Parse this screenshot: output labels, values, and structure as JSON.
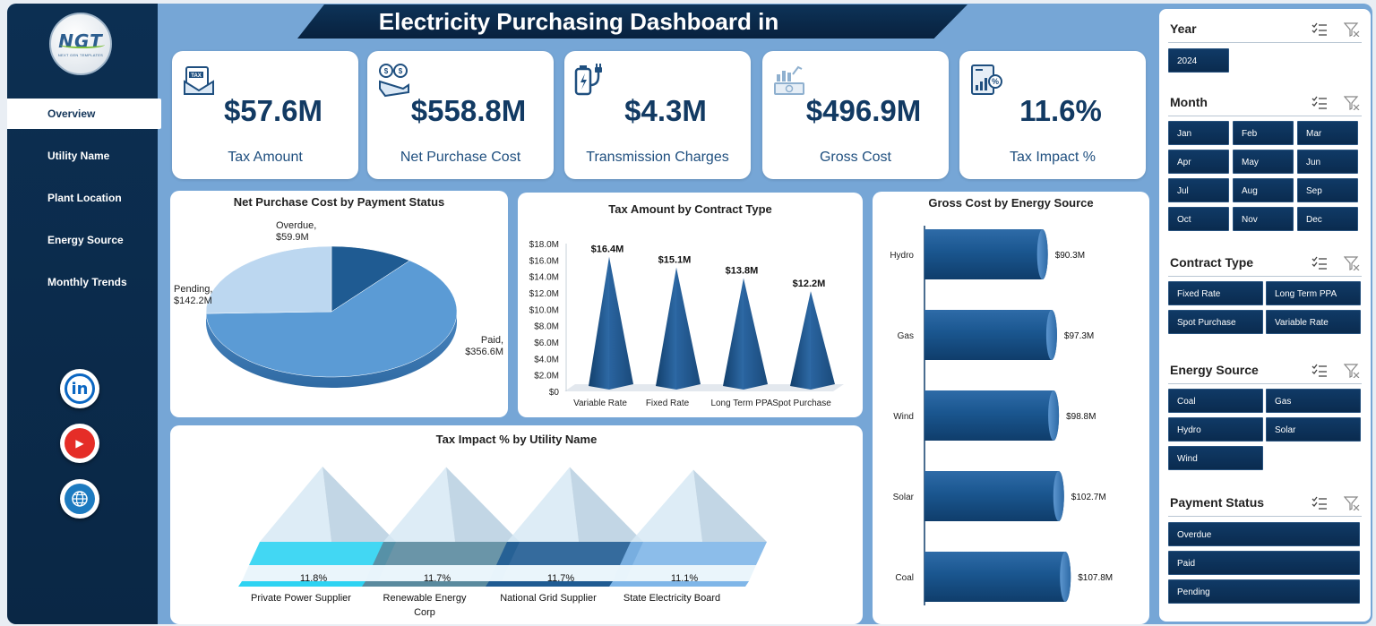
{
  "title": "Electricity Purchasing Dashboard in",
  "logo": {
    "text": "NGT",
    "subtext": "NEXT GEN TEMPLATES"
  },
  "nav": {
    "items": [
      {
        "label": "Overview",
        "active": true
      },
      {
        "label": "Utility Name",
        "active": false
      },
      {
        "label": "Plant Location",
        "active": false
      },
      {
        "label": "Energy Source",
        "active": false
      },
      {
        "label": "Monthly Trends",
        "active": false
      }
    ]
  },
  "social": [
    {
      "icon": "linkedin-icon",
      "text": "in",
      "color": "#0a66c2"
    },
    {
      "icon": "youtube-icon",
      "text": "▶",
      "color": "#e52d27"
    },
    {
      "icon": "globe-icon",
      "text": "",
      "color": "#1d7bc0"
    }
  ],
  "kpis": [
    {
      "value": "$57.6M",
      "label": "Tax Amount",
      "icon": "tax-document-icon"
    },
    {
      "value": "$558.8M",
      "label": "Net Purchase Cost",
      "icon": "money-coins-icon"
    },
    {
      "value": "$4.3M",
      "label": "Transmission Charges",
      "icon": "battery-plug-icon"
    },
    {
      "value": "$496.9M",
      "label": "Gross Cost",
      "icon": "cash-chart-icon"
    },
    {
      "value": "11.6%",
      "label": "Tax Impact %",
      "icon": "report-percent-icon"
    }
  ],
  "chart_data": [
    {
      "type": "pie",
      "title": "Net Purchase Cost by Payment Status",
      "categories": [
        "Paid",
        "Pending",
        "Overdue"
      ],
      "values": [
        356.6,
        142.2,
        59.9
      ],
      "labels": [
        "Paid,",
        "Pending,",
        "Overdue,"
      ],
      "value_labels": [
        "$356.6M",
        "$142.2M",
        "$59.9M"
      ],
      "colors": [
        "#5b9bd5",
        "#bcd7f0",
        "#1f5b92"
      ]
    },
    {
      "type": "bar",
      "title": "Tax Amount by Contract Type",
      "categories": [
        "Variable Rate",
        "Fixed Rate",
        "Long Term PPA",
        "Spot Purchase"
      ],
      "values": [
        16.4,
        15.1,
        13.8,
        12.2
      ],
      "value_labels": [
        "$16.4M",
        "$15.1M",
        "$13.8M",
        "$12.2M"
      ],
      "ylim": [
        0,
        18
      ],
      "yticks": [
        "$0",
        "$2.0M",
        "$4.0M",
        "$6.0M",
        "$8.0M",
        "$10.0M",
        "$12.0M",
        "$14.0M",
        "$16.0M",
        "$18.0M"
      ],
      "shape": "pyramid"
    },
    {
      "type": "bar",
      "title": "Gross Cost by Energy Source",
      "orientation": "horizontal",
      "categories": [
        "Hydro",
        "Gas",
        "Wind",
        "Solar",
        "Coal"
      ],
      "values": [
        90.3,
        97.3,
        98.8,
        102.7,
        107.8
      ],
      "value_labels": [
        "$90.3M",
        "$97.3M",
        "$98.8M",
        "$102.7M",
        "$107.8M"
      ],
      "shape": "cylinder"
    },
    {
      "type": "bar",
      "title": "Tax Impact % by Utility Name",
      "categories": [
        "Private Power Supplier",
        "Renewable Energy Corp",
        "National Grid Supplier",
        "State Electricity Board"
      ],
      "category_lines": [
        [
          "Private Power Supplier"
        ],
        [
          "Renewable Energy",
          "Corp"
        ],
        [
          "National Grid Supplier"
        ],
        [
          "State Electricity Board"
        ]
      ],
      "values": [
        11.8,
        11.7,
        11.7,
        11.1
      ],
      "value_labels": [
        "11.8%",
        "11.7%",
        "11.7%",
        "11.1%"
      ],
      "shape": "pyramid",
      "colors": [
        "#2ed3f2",
        "#5a8a9e",
        "#1f5b92",
        "#7fb6e8"
      ]
    }
  ],
  "slicers": [
    {
      "title": "Year",
      "buttons": [
        "2024"
      ]
    },
    {
      "title": "Month",
      "buttons": [
        "Jan",
        "Feb",
        "Mar",
        "Apr",
        "May",
        "Jun",
        "Jul",
        "Aug",
        "Sep",
        "Oct",
        "Nov",
        "Dec"
      ]
    },
    {
      "title": "Contract Type",
      "buttons": [
        "Fixed Rate",
        "Long Term PPA",
        "Spot Purchase",
        "Variable Rate"
      ]
    },
    {
      "title": "Energy Source",
      "buttons": [
        "Coal",
        "Gas",
        "Hydro",
        "Solar",
        "Wind"
      ]
    },
    {
      "title": "Payment Status",
      "buttons": [
        "Overdue",
        "Paid",
        "Pending"
      ]
    }
  ]
}
